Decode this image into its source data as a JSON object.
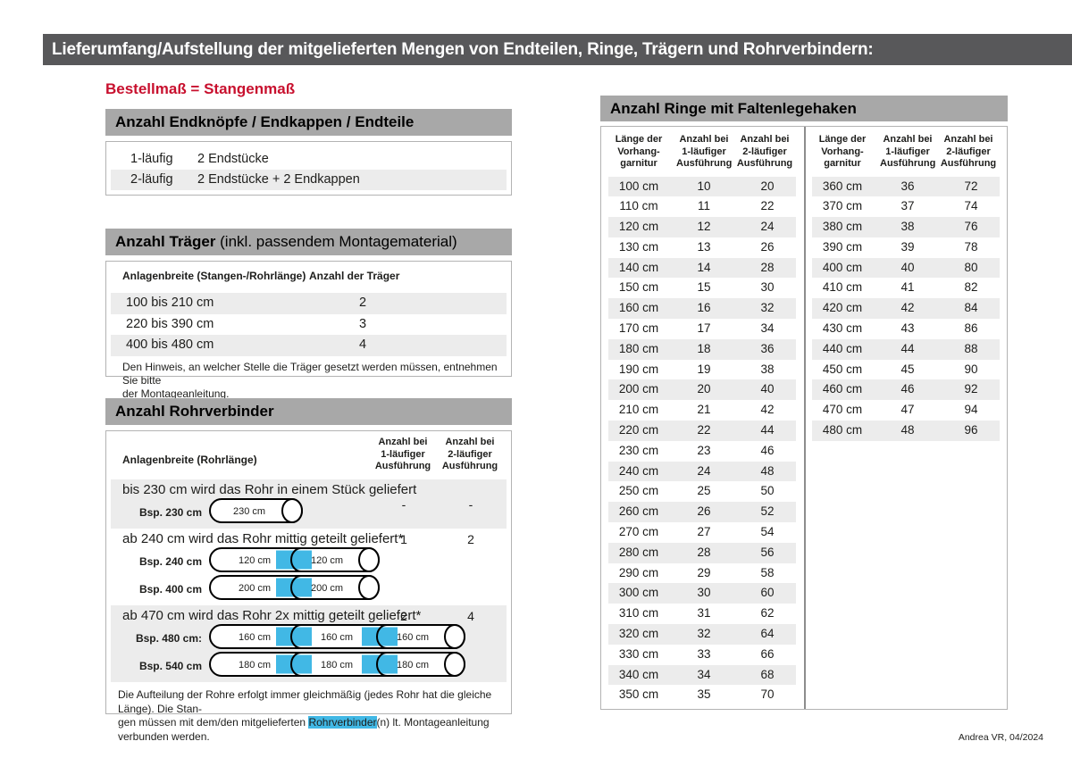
{
  "page": {
    "title": "Lieferumfang/Aufstellung der mitgelieferten Mengen von Endteilen, Ringe, Trägern und Rohrverbindern:",
    "subtitle": "Bestellmaß = Stangenmaß",
    "footer": "Andrea VR, 04/2024"
  },
  "colors": {
    "topbar_gray": "#58585a",
    "section_header_gray": "#a8a8a8",
    "stripe_gray": "#ececec",
    "accent_red": "#c8102e",
    "connector_blue": "#41b8e5",
    "box_border": "#b3b3b3"
  },
  "endteile": {
    "header": "Anzahl Endknöpfe / Endkappen / Endteile",
    "rows": [
      {
        "label": "1-läufig",
        "value": "2 Endstücke"
      },
      {
        "label": "2-läufig",
        "value": "2 Endstücke + 2 Endkappen"
      }
    ]
  },
  "traeger": {
    "header_bold": "Anzahl Träger",
    "header_normal": " (inkl. passendem Montagematerial)",
    "col1": "Anlagenbreite (Stangen-/Rohrlänge)",
    "col2": "Anzahl der Träger",
    "rows": [
      {
        "range": "100 bis 210 cm",
        "count": "2"
      },
      {
        "range": "220 bis 390 cm",
        "count": "3"
      },
      {
        "range": "400 bis 480 cm",
        "count": "4"
      }
    ],
    "note_line1": "Den Hinweis, an welcher Stelle die Träger gesetzt werden müssen, entnehmen Sie bitte",
    "note_line2": "der Montageanleitung."
  },
  "rohrverbinder": {
    "header": "Anzahl Rohrverbinder",
    "col_label": "Anlagenbreite (Rohrlänge)",
    "col1_lines": [
      "Anzahl bei",
      "1-läufiger",
      "Ausführung"
    ],
    "col2_lines": [
      "Anzahl bei",
      "2-läufiger",
      "Ausführung"
    ],
    "sections": [
      {
        "text": "bis 230 cm wird das Rohr in einem Stück geliefert",
        "count1": "-",
        "count2": "-",
        "striped": true,
        "examples": [
          {
            "label": "Bsp. 230 cm",
            "segments": [
              "230 cm"
            ]
          }
        ]
      },
      {
        "text": "ab 240 cm wird das Rohr mittig geteilt geliefert*",
        "count1": "1",
        "count2": "2",
        "striped": false,
        "examples": [
          {
            "label": "Bsp. 240 cm",
            "segments": [
              "120 cm",
              "120 cm"
            ]
          },
          {
            "label": "Bsp. 400 cm",
            "segments": [
              "200 cm",
              "200 cm"
            ]
          }
        ]
      },
      {
        "text": "ab 470 cm wird das Rohr 2x mittig geteilt geliefert*",
        "count1": "2",
        "count2": "4",
        "striped": true,
        "examples": [
          {
            "label": "Bsp. 480 cm:",
            "segments": [
              "160 cm",
              "160 cm",
              "160 cm"
            ]
          },
          {
            "label": "Bsp. 540 cm",
            "segments": [
              "180 cm",
              "180 cm",
              "180 cm"
            ]
          }
        ]
      }
    ],
    "note_line1": "Die Aufteilung der Rohre erfolgt immer gleichmäßig (jedes Rohr hat die gleiche Länge). Die Stan-",
    "note_line2_pre": "gen müssen mit dem/den mitgelieferten ",
    "note_line2_highlight": "Rohrverbinder",
    "note_line2_post": "(n) lt. Montageanleitung verbunden werden."
  },
  "ringe": {
    "header": "Anzahl Ringe mit Faltenlegehaken",
    "col_lines": {
      "col1": [
        "Länge der",
        "Vorhang-",
        "garnitur"
      ],
      "col2": [
        "Anzahl bei",
        "1-läufiger",
        "Ausführung"
      ],
      "col3": [
        "Anzahl bei",
        "2-läufiger",
        "Ausführung"
      ]
    },
    "table_left": [
      [
        "100 cm",
        "10",
        "20"
      ],
      [
        "110 cm",
        "11",
        "22"
      ],
      [
        "120 cm",
        "12",
        "24"
      ],
      [
        "130 cm",
        "13",
        "26"
      ],
      [
        "140 cm",
        "14",
        "28"
      ],
      [
        "150 cm",
        "15",
        "30"
      ],
      [
        "160 cm",
        "16",
        "32"
      ],
      [
        "170 cm",
        "17",
        "34"
      ],
      [
        "180 cm",
        "18",
        "36"
      ],
      [
        "190 cm",
        "19",
        "38"
      ],
      [
        "200 cm",
        "20",
        "40"
      ],
      [
        "210 cm",
        "21",
        "42"
      ],
      [
        "220 cm",
        "22",
        "44"
      ],
      [
        "230 cm",
        "23",
        "46"
      ],
      [
        "240 cm",
        "24",
        "48"
      ],
      [
        "250 cm",
        "25",
        "50"
      ],
      [
        "260 cm",
        "26",
        "52"
      ],
      [
        "270 cm",
        "27",
        "54"
      ],
      [
        "280 cm",
        "28",
        "56"
      ],
      [
        "290 cm",
        "29",
        "58"
      ],
      [
        "300 cm",
        "30",
        "60"
      ],
      [
        "310 cm",
        "31",
        "62"
      ],
      [
        "320 cm",
        "32",
        "64"
      ],
      [
        "330 cm",
        "33",
        "66"
      ],
      [
        "340 cm",
        "34",
        "68"
      ],
      [
        "350 cm",
        "35",
        "70"
      ]
    ],
    "table_right": [
      [
        "360 cm",
        "36",
        "72"
      ],
      [
        "370 cm",
        "37",
        "74"
      ],
      [
        "380 cm",
        "38",
        "76"
      ],
      [
        "390 cm",
        "39",
        "78"
      ],
      [
        "400 cm",
        "40",
        "80"
      ],
      [
        "410 cm",
        "41",
        "82"
      ],
      [
        "420 cm",
        "42",
        "84"
      ],
      [
        "430 cm",
        "43",
        "86"
      ],
      [
        "440 cm",
        "44",
        "88"
      ],
      [
        "450 cm",
        "45",
        "90"
      ],
      [
        "460 cm",
        "46",
        "92"
      ],
      [
        "470 cm",
        "47",
        "94"
      ],
      [
        "480 cm",
        "48",
        "96"
      ]
    ]
  }
}
